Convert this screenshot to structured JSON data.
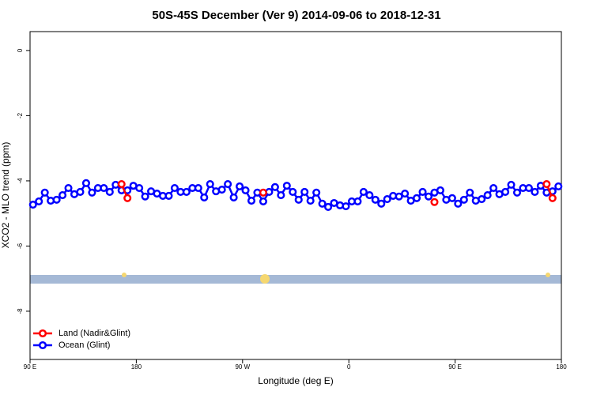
{
  "chart_data": {
    "type": "line",
    "title": "50S-45S December (Ver 9)   2014-09-06 to 2018-12-31",
    "xlabel": "Longitude (deg E)",
    "ylabel": "XCO2 - MLO trend (ppm)",
    "xlim": [
      90,
      540
    ],
    "ylim": [
      -9.48,
      0.58
    ],
    "xticks": [
      {
        "value": 90,
        "label": "90 E"
      },
      {
        "value": 180,
        "label": "180"
      },
      {
        "value": 270,
        "label": "90 W"
      },
      {
        "value": 360,
        "label": "0"
      },
      {
        "value": 450,
        "label": "90 E"
      },
      {
        "value": 540,
        "label": "180"
      }
    ],
    "yticks": [
      0,
      -2,
      -4,
      -6,
      -8
    ],
    "grid": false,
    "legend": "bottom-left",
    "x": [
      92.5,
      97.5,
      102.5,
      107.5,
      112.5,
      117.5,
      122.5,
      127.5,
      132.5,
      137.5,
      142.5,
      147.5,
      152.5,
      157.5,
      162.5,
      167.5,
      172.5,
      177.5,
      182.5,
      187.5,
      192.5,
      197.5,
      202.5,
      207.5,
      212.5,
      217.5,
      222.5,
      227.5,
      232.5,
      237.5,
      242.5,
      247.5,
      252.5,
      257.5,
      262.5,
      267.5,
      272.5,
      277.5,
      282.5,
      287.5,
      292.5,
      297.5,
      302.5,
      307.5,
      312.5,
      317.5,
      322.5,
      327.5,
      332.5,
      337.5,
      342.5,
      347.5,
      352.5,
      357.5,
      362.5,
      367.5,
      372.5,
      377.5,
      382.5,
      387.5,
      392.5,
      397.5,
      402.5,
      407.5,
      412.5,
      417.5,
      422.5,
      427.5,
      432.5,
      437.5,
      442.5,
      447.5,
      452.5,
      457.5,
      462.5,
      467.5,
      472.5,
      477.5,
      482.5,
      487.5,
      492.5,
      497.5,
      502.5,
      507.5,
      512.5,
      517.5,
      522.5,
      527.5,
      532.5,
      537.5
    ],
    "series": [
      {
        "name": "Land (Nadir&Glint)",
        "color": "#ff0000",
        "values": [
          null,
          null,
          null,
          null,
          null,
          null,
          null,
          null,
          null,
          null,
          null,
          null,
          null,
          null,
          null,
          -4.1,
          -4.53,
          null,
          null,
          null,
          null,
          null,
          null,
          null,
          null,
          null,
          null,
          null,
          null,
          null,
          null,
          null,
          null,
          null,
          null,
          null,
          null,
          null,
          null,
          -4.36,
          null,
          null,
          null,
          null,
          null,
          null,
          null,
          null,
          null,
          null,
          null,
          null,
          null,
          null,
          null,
          null,
          null,
          null,
          null,
          null,
          null,
          null,
          null,
          null,
          null,
          null,
          null,
          null,
          -4.65,
          null,
          null,
          null,
          null,
          null,
          null,
          null,
          null,
          null,
          null,
          null,
          null,
          null,
          null,
          null,
          null,
          null,
          null,
          -4.1,
          -4.53,
          null
        ]
      },
      {
        "name": "Ocean (Glint)",
        "color": "#0000ff",
        "values": [
          -4.73,
          -4.63,
          -4.36,
          -4.61,
          -4.58,
          -4.44,
          -4.22,
          -4.41,
          -4.34,
          -4.07,
          -4.36,
          -4.22,
          -4.22,
          -4.34,
          -4.12,
          -4.29,
          -4.29,
          -4.15,
          -4.22,
          -4.48,
          -4.32,
          -4.39,
          -4.46,
          -4.46,
          -4.22,
          -4.34,
          -4.34,
          -4.22,
          -4.22,
          -4.51,
          -4.1,
          -4.32,
          -4.27,
          -4.1,
          -4.51,
          -4.17,
          -4.29,
          -4.61,
          -4.36,
          -4.63,
          -4.34,
          -4.19,
          -4.44,
          -4.15,
          -4.34,
          -4.58,
          -4.34,
          -4.61,
          -4.36,
          -4.7,
          -4.8,
          -4.68,
          -4.75,
          -4.78,
          -4.63,
          -4.63,
          -4.34,
          -4.44,
          -4.58,
          -4.7,
          -4.56,
          -4.46,
          -4.48,
          -4.39,
          -4.61,
          -4.53,
          -4.34,
          -4.48,
          -4.36,
          -4.29,
          -4.58,
          -4.53,
          -4.7,
          -4.58,
          -4.36,
          -4.61,
          -4.56,
          -4.44,
          -4.22,
          -4.41,
          -4.34,
          -4.12,
          -4.36,
          -4.22,
          -4.22,
          -4.34,
          -4.15,
          -4.36,
          -4.32,
          -4.17
        ]
      }
    ]
  }
}
